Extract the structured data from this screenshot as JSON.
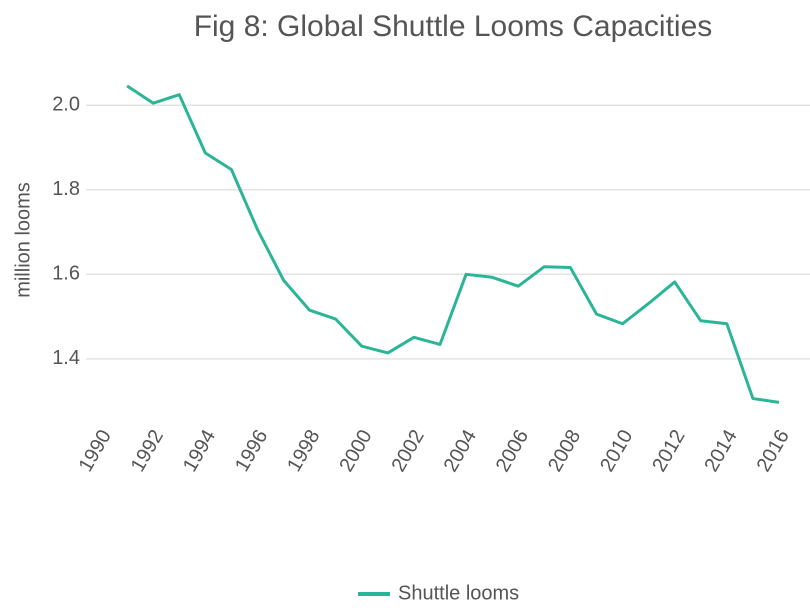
{
  "chart_data": {
    "type": "line",
    "title": "Fig 8: Global Shuttle Looms Capacities",
    "y_label": "million looms",
    "x": [
      1991,
      1992,
      1993,
      1994,
      1995,
      1996,
      1997,
      1998,
      1999,
      2000,
      2001,
      2002,
      2003,
      2004,
      2005,
      2006,
      2007,
      2008,
      2009,
      2010,
      2011,
      2012,
      2013,
      2014,
      2015,
      2016
    ],
    "series": [
      {
        "name": "Shuttle looms",
        "color": "#2bb597",
        "values": [
          2.046,
          2.005,
          2.025,
          1.887,
          1.848,
          1.706,
          1.586,
          1.515,
          1.494,
          1.43,
          1.414,
          1.451,
          1.434,
          1.6,
          1.593,
          1.572,
          1.618,
          1.616,
          1.506,
          1.483,
          1.531,
          1.582,
          1.49,
          1.483,
          1.306,
          1.297
        ]
      }
    ],
    "xlim": [
      1990,
      2016
    ],
    "xticks": [
      1990,
      1992,
      1994,
      1996,
      1998,
      2000,
      2002,
      2004,
      2006,
      2008,
      2010,
      2012,
      2014,
      2016
    ],
    "ylim": [
      1.26,
      2.1
    ],
    "yticks": [
      1.4,
      1.6,
      1.8,
      {
        "value": 2,
        "label": "2.0"
      }
    ],
    "grid": true,
    "legend": "bottom"
  }
}
